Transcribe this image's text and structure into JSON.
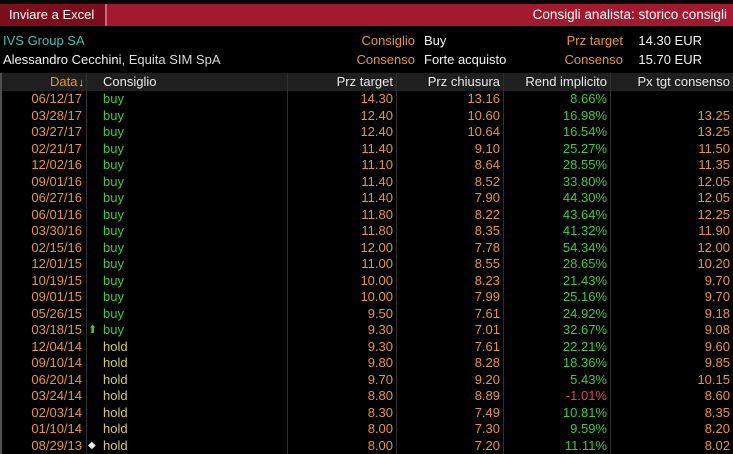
{
  "titlebar": {
    "export_button": "Inviare a Excel",
    "title": "Consigli analista: storico consigli"
  },
  "info": {
    "security": "IVS Group SA",
    "analyst_name": "Alessandro Cecchini",
    "analyst_firm": ", Equita SIM SpA",
    "rec_label": "Consiglio",
    "rec_value": "Buy",
    "target_label": "Prz target",
    "target_value": "14.30 EUR",
    "consensus_label": "Consenso",
    "consensus_value": "Forte acquisto",
    "consensus_target_label": "Consenso",
    "consensus_target_value": "15.70 EUR"
  },
  "icons": {
    "sort_down": "↓",
    "up_arrow": "⬆",
    "diamond": "◆"
  },
  "colors": {
    "amber": "#e8962f",
    "green": "#3bcc3b",
    "hold_yellow": "#d8ca5a",
    "negative_red": "#e04545",
    "teal": "#42c2b2",
    "bar_red": "#a31a2f",
    "button_red": "#7e0d1c"
  },
  "table": {
    "headers": {
      "date": "Data",
      "consiglio": "Consiglio",
      "prz_target": "Prz target",
      "prz_chiusura": "Prz chiusura",
      "rend_implicito": "Rend implicito",
      "px_tgt_consenso": "Px tgt consenso"
    },
    "rows": [
      {
        "date": "06/12/17",
        "marker": "",
        "consiglio": "buy",
        "prz_target": "14.30",
        "prz_chiusura": "13.16",
        "rend_implicito": "8.66%",
        "px_tgt_consenso": ""
      },
      {
        "date": "03/28/17",
        "marker": "",
        "consiglio": "buy",
        "prz_target": "12.40",
        "prz_chiusura": "10.60",
        "rend_implicito": "16.98%",
        "px_tgt_consenso": "13.25"
      },
      {
        "date": "03/27/17",
        "marker": "",
        "consiglio": "buy",
        "prz_target": "12.40",
        "prz_chiusura": "10.64",
        "rend_implicito": "16.54%",
        "px_tgt_consenso": "13.25"
      },
      {
        "date": "02/21/17",
        "marker": "",
        "consiglio": "buy",
        "prz_target": "11.40",
        "prz_chiusura": "9.10",
        "rend_implicito": "25.27%",
        "px_tgt_consenso": "11.50"
      },
      {
        "date": "12/02/16",
        "marker": "",
        "consiglio": "buy",
        "prz_target": "11.10",
        "prz_chiusura": "8.64",
        "rend_implicito": "28.55%",
        "px_tgt_consenso": "11.35"
      },
      {
        "date": "09/01/16",
        "marker": "",
        "consiglio": "buy",
        "prz_target": "11.40",
        "prz_chiusura": "8.52",
        "rend_implicito": "33.80%",
        "px_tgt_consenso": "12.05"
      },
      {
        "date": "06/27/16",
        "marker": "",
        "consiglio": "buy",
        "prz_target": "11.40",
        "prz_chiusura": "7.90",
        "rend_implicito": "44.30%",
        "px_tgt_consenso": "12.05"
      },
      {
        "date": "06/01/16",
        "marker": "",
        "consiglio": "buy",
        "prz_target": "11.80",
        "prz_chiusura": "8.22",
        "rend_implicito": "43.64%",
        "px_tgt_consenso": "12.25"
      },
      {
        "date": "03/30/16",
        "marker": "",
        "consiglio": "buy",
        "prz_target": "11.80",
        "prz_chiusura": "8.35",
        "rend_implicito": "41.32%",
        "px_tgt_consenso": "11.90"
      },
      {
        "date": "02/15/16",
        "marker": "",
        "consiglio": "buy",
        "prz_target": "12.00",
        "prz_chiusura": "7.78",
        "rend_implicito": "54.34%",
        "px_tgt_consenso": "12.00"
      },
      {
        "date": "12/01/15",
        "marker": "",
        "consiglio": "buy",
        "prz_target": "11.00",
        "prz_chiusura": "8.55",
        "rend_implicito": "28.65%",
        "px_tgt_consenso": "10.20"
      },
      {
        "date": "10/19/15",
        "marker": "",
        "consiglio": "buy",
        "prz_target": "10.00",
        "prz_chiusura": "8.23",
        "rend_implicito": "21.43%",
        "px_tgt_consenso": "9.70"
      },
      {
        "date": "09/01/15",
        "marker": "",
        "consiglio": "buy",
        "prz_target": "10.00",
        "prz_chiusura": "7.99",
        "rend_implicito": "25.16%",
        "px_tgt_consenso": "9.70"
      },
      {
        "date": "05/26/15",
        "marker": "",
        "consiglio": "buy",
        "prz_target": "9.50",
        "prz_chiusura": "7.61",
        "rend_implicito": "24.92%",
        "px_tgt_consenso": "9.18"
      },
      {
        "date": "03/18/15",
        "marker": "up",
        "consiglio": "buy",
        "prz_target": "9.30",
        "prz_chiusura": "7.01",
        "rend_implicito": "32.67%",
        "px_tgt_consenso": "9.08"
      },
      {
        "date": "12/04/14",
        "marker": "",
        "consiglio": "hold",
        "prz_target": "9.30",
        "prz_chiusura": "7.61",
        "rend_implicito": "22.21%",
        "px_tgt_consenso": "9.60"
      },
      {
        "date": "09/10/14",
        "marker": "",
        "consiglio": "hold",
        "prz_target": "9.80",
        "prz_chiusura": "8.28",
        "rend_implicito": "18.36%",
        "px_tgt_consenso": "9.85"
      },
      {
        "date": "06/20/14",
        "marker": "",
        "consiglio": "hold",
        "prz_target": "9.70",
        "prz_chiusura": "9.20",
        "rend_implicito": "5.43%",
        "px_tgt_consenso": "10.15"
      },
      {
        "date": "03/24/14",
        "marker": "",
        "consiglio": "hold",
        "prz_target": "8.80",
        "prz_chiusura": "8.89",
        "rend_implicito": "-1.01%",
        "px_tgt_consenso": "8.60"
      },
      {
        "date": "02/03/14",
        "marker": "",
        "consiglio": "hold",
        "prz_target": "8.30",
        "prz_chiusura": "7.49",
        "rend_implicito": "10.81%",
        "px_tgt_consenso": "8.35"
      },
      {
        "date": "01/10/14",
        "marker": "",
        "consiglio": "hold",
        "prz_target": "8.00",
        "prz_chiusura": "7.30",
        "rend_implicito": "9.59%",
        "px_tgt_consenso": "8.20"
      },
      {
        "date": "08/29/13",
        "marker": "diamond",
        "consiglio": "hold",
        "prz_target": "8.00",
        "prz_chiusura": "7.20",
        "rend_implicito": "11.11%",
        "px_tgt_consenso": "8.02"
      }
    ]
  }
}
